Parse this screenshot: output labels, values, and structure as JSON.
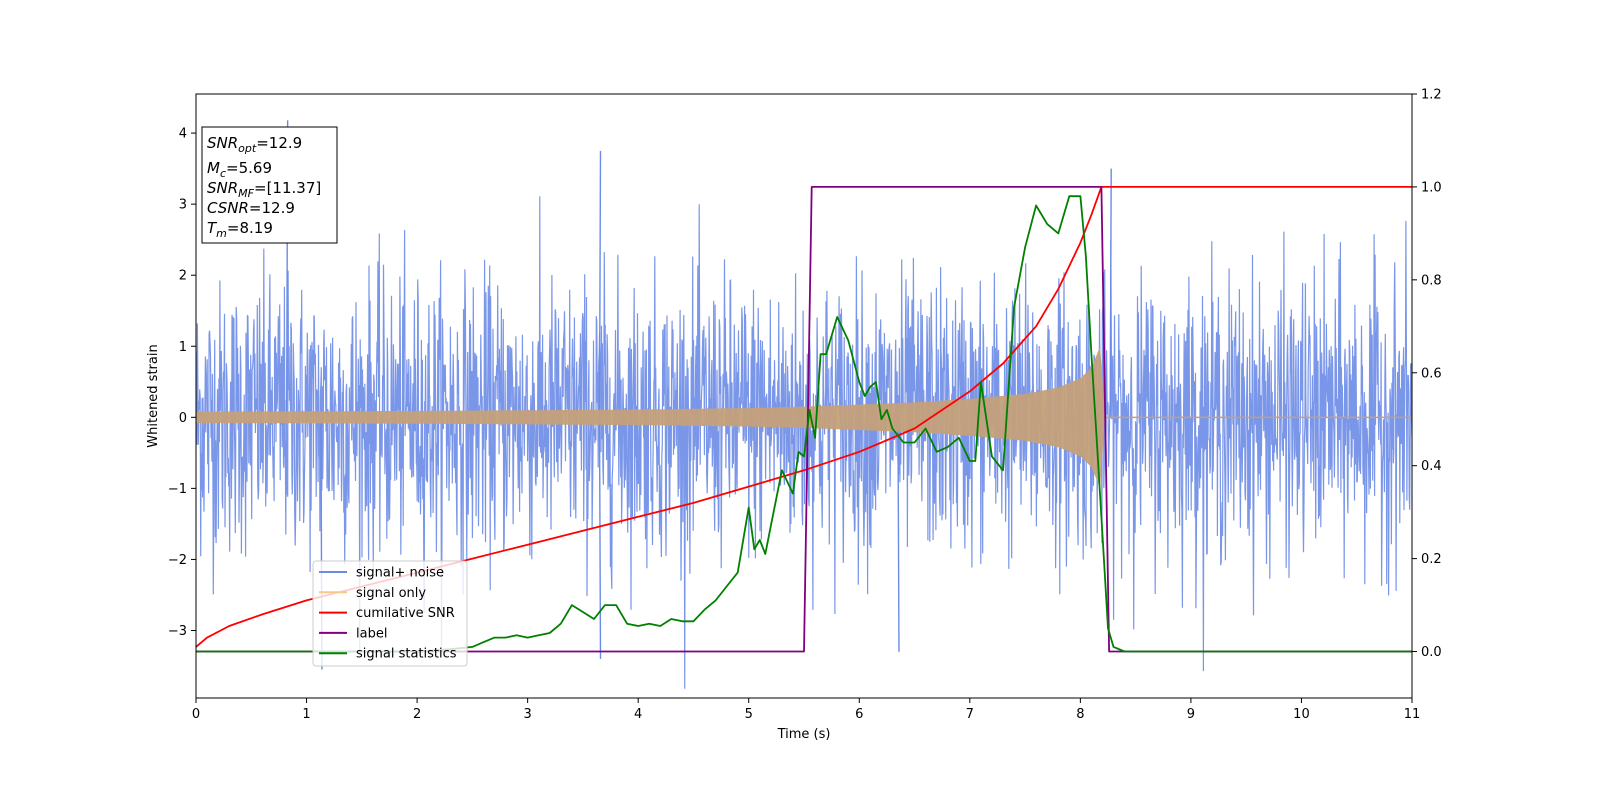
{
  "chart_data": {
    "type": "line",
    "xlabel": "Time (s)",
    "ylabel_left": "Whitened strain",
    "ylabel_right": "",
    "xlim": [
      0,
      11
    ],
    "ylim_left": [
      -3.95,
      4.55
    ],
    "ylim_right": [
      -0.1,
      1.2
    ],
    "x_ticks": [
      0,
      1,
      2,
      3,
      4,
      5,
      6,
      7,
      8,
      9,
      10,
      11
    ],
    "y_left_ticks": [
      -3,
      -2,
      -1,
      0,
      1,
      2,
      3,
      4
    ],
    "y_right_ticks": [
      0.0,
      0.2,
      0.4,
      0.6,
      0.8,
      1.0,
      1.2
    ],
    "grid": false,
    "legend_position": "lower-left",
    "colors": {
      "signal_noise": "#6b8be6",
      "signal_only": "#c4a07a",
      "cumulative_snr": "#ff0000",
      "label": "#800080",
      "signal_statistics": "#008000"
    },
    "series": [
      {
        "name": "signal+ noise",
        "axis": "left",
        "description_values": "noise envelope approx ±1.5 to ±2.5, peaks up to 4.2 / -3.55",
        "peaks": [
          [
            0.82,
            4.18
          ],
          [
            1.13,
            -3.55
          ],
          [
            3.65,
            3.75
          ],
          [
            3.65,
            -3.4
          ],
          [
            6.35,
            -3.3
          ],
          [
            8.27,
            3.5
          ]
        ]
      },
      {
        "name": "signal only",
        "axis": "left",
        "envelope_x": [
          0,
          1,
          2,
          3,
          4,
          5,
          5.5,
          6,
          6.5,
          7,
          7.5,
          7.8,
          8.0,
          8.1,
          8.18,
          8.22
        ],
        "envelope_y": [
          0.08,
          0.085,
          0.09,
          0.1,
          0.11,
          0.13,
          0.15,
          0.18,
          0.21,
          0.26,
          0.33,
          0.42,
          0.55,
          0.7,
          1.0,
          0.0
        ]
      },
      {
        "name": "cumilative SNR",
        "axis": "right",
        "x": [
          0,
          0.1,
          0.3,
          0.6,
          1,
          1.5,
          2,
          2.5,
          3,
          3.5,
          4,
          4.5,
          5,
          5.5,
          6,
          6.5,
          7,
          7.3,
          7.6,
          7.8,
          8.0,
          8.1,
          8.19,
          11
        ],
        "y": [
          0.01,
          0.03,
          0.055,
          0.08,
          0.11,
          0.14,
          0.17,
          0.2,
          0.23,
          0.26,
          0.29,
          0.32,
          0.355,
          0.39,
          0.43,
          0.48,
          0.56,
          0.62,
          0.7,
          0.78,
          0.88,
          0.94,
          1.0,
          1.0
        ]
      },
      {
        "name": "label",
        "axis": "right",
        "x": [
          0,
          5.5,
          5.57,
          8.19,
          8.26,
          11
        ],
        "y": [
          0,
          0,
          1,
          1,
          0,
          0
        ]
      },
      {
        "name": "signal statistics",
        "axis": "right",
        "x": [
          0,
          0.5,
          1,
          1.5,
          2,
          2.3,
          2.5,
          2.6,
          2.7,
          2.8,
          2.9,
          3.0,
          3.1,
          3.2,
          3.3,
          3.4,
          3.5,
          3.6,
          3.7,
          3.8,
          3.9,
          4.0,
          4.1,
          4.2,
          4.3,
          4.4,
          4.5,
          4.6,
          4.7,
          4.8,
          4.9,
          5.0,
          5.05,
          5.1,
          5.15,
          5.2,
          5.3,
          5.4,
          5.45,
          5.5,
          5.55,
          5.6,
          5.65,
          5.7,
          5.8,
          5.9,
          6.0,
          6.05,
          6.1,
          6.15,
          6.2,
          6.25,
          6.3,
          6.4,
          6.5,
          6.6,
          6.7,
          6.8,
          6.9,
          7.0,
          7.05,
          7.1,
          7.2,
          7.3,
          7.4,
          7.5,
          7.6,
          7.7,
          7.8,
          7.9,
          7.95,
          8.0,
          8.05,
          8.1,
          8.15,
          8.2,
          8.25,
          8.3,
          8.4,
          9,
          10,
          11
        ],
        "y": [
          0.0,
          0.0,
          0.0,
          0.0,
          0.0,
          0.005,
          0.01,
          0.02,
          0.03,
          0.03,
          0.035,
          0.03,
          0.035,
          0.04,
          0.06,
          0.1,
          0.085,
          0.07,
          0.1,
          0.1,
          0.06,
          0.055,
          0.06,
          0.055,
          0.07,
          0.065,
          0.065,
          0.09,
          0.11,
          0.14,
          0.17,
          0.31,
          0.22,
          0.24,
          0.21,
          0.27,
          0.39,
          0.34,
          0.43,
          0.42,
          0.52,
          0.46,
          0.64,
          0.64,
          0.72,
          0.67,
          0.58,
          0.55,
          0.57,
          0.58,
          0.5,
          0.52,
          0.48,
          0.45,
          0.45,
          0.48,
          0.43,
          0.44,
          0.46,
          0.41,
          0.41,
          0.58,
          0.42,
          0.39,
          0.74,
          0.87,
          0.96,
          0.92,
          0.9,
          0.98,
          0.98,
          0.98,
          0.85,
          0.64,
          0.45,
          0.25,
          0.05,
          0.01,
          0.0,
          0.0,
          0.0,
          0.0
        ]
      }
    ],
    "annotation": {
      "lines": [
        {
          "main": "SNR",
          "sub": "opt",
          "rest": "=12.9"
        },
        {
          "main": "M",
          "sub": "c",
          "rest": "=5.69"
        },
        {
          "main": "SNR",
          "sub": "MF",
          "rest": "=[11.37]"
        },
        {
          "main": "CSNR",
          "sub": "",
          "rest": "=12.9"
        },
        {
          "main": "T",
          "sub": "m",
          "rest": "=8.19"
        }
      ]
    },
    "legend": [
      {
        "label": "signal+ noise",
        "color": "#6b8be6"
      },
      {
        "label": "signal only",
        "color": "#f5c98a"
      },
      {
        "label": "cumilative SNR",
        "color": "#ff0000"
      },
      {
        "label": "label",
        "color": "#800080"
      },
      {
        "label": "signal statistics",
        "color": "#008000"
      }
    ]
  }
}
